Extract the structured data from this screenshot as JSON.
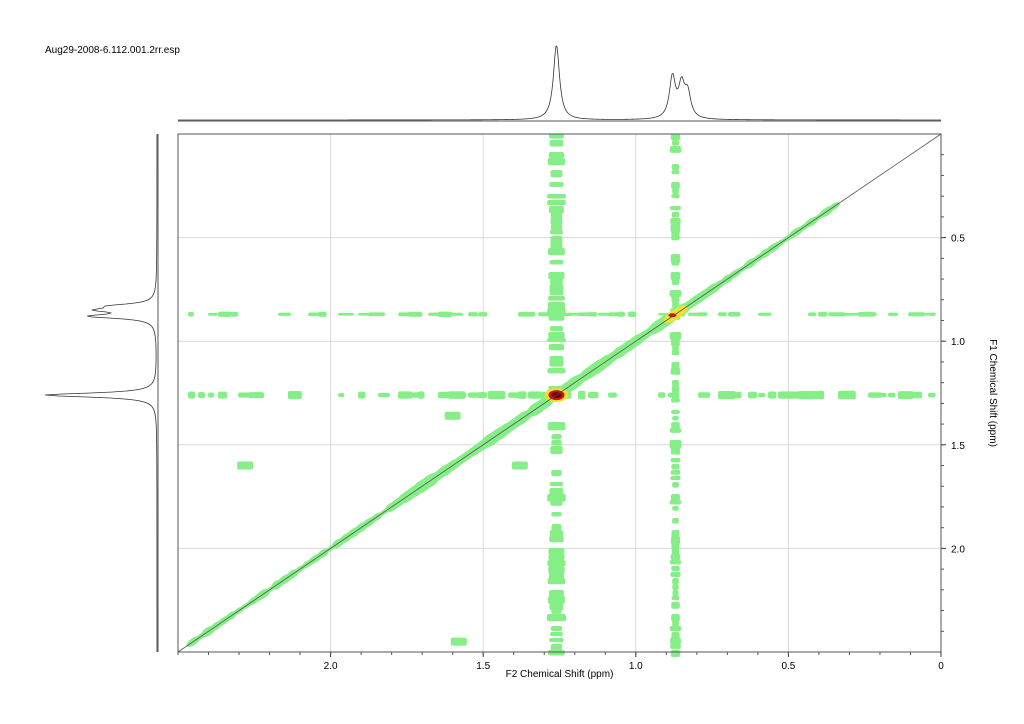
{
  "file_title": "Aug29-2008-6.112.001.2rr.esp",
  "colors": {
    "contour_low": "#86ee86",
    "contour_mid": "#f0e030",
    "contour_high": "#d01010",
    "trace": "#333333",
    "frame": "#555555",
    "grid": "#d8d8d8"
  },
  "chart_data": {
    "type": "heatmap",
    "title": "",
    "xlabel": "F2 Chemical Shift (ppm)",
    "ylabel": "F1 Chemical Shift (ppm)",
    "xlim": [
      2.5,
      0
    ],
    "ylim": [
      0,
      2.5
    ],
    "x_reversed": true,
    "x_ticks": [
      "2.0",
      "1.5",
      "1.0",
      "0.5",
      "0"
    ],
    "y_ticks": [
      "0.5",
      "1.0",
      "1.5",
      "2.0"
    ],
    "grid": true,
    "diagonal": true,
    "projection_peaks_ppm": [
      {
        "shift": 1.26,
        "intensity": 1.0
      },
      {
        "shift": 0.88,
        "intensity": 0.55
      },
      {
        "shift": 0.85,
        "intensity": 0.42
      },
      {
        "shift": 0.83,
        "intensity": 0.32
      }
    ],
    "diagonal_peaks": [
      {
        "x": 1.26,
        "y": 1.26,
        "intensity": "high"
      },
      {
        "x": 0.87,
        "y": 0.87,
        "intensity": "medium"
      }
    ],
    "cross_peak_streaks": [
      {
        "axis": "F2",
        "at": 1.26
      },
      {
        "axis": "F2",
        "at": 0.87
      },
      {
        "axis": "F1",
        "at": 1.26
      },
      {
        "axis": "F1",
        "at": 0.87
      }
    ]
  }
}
